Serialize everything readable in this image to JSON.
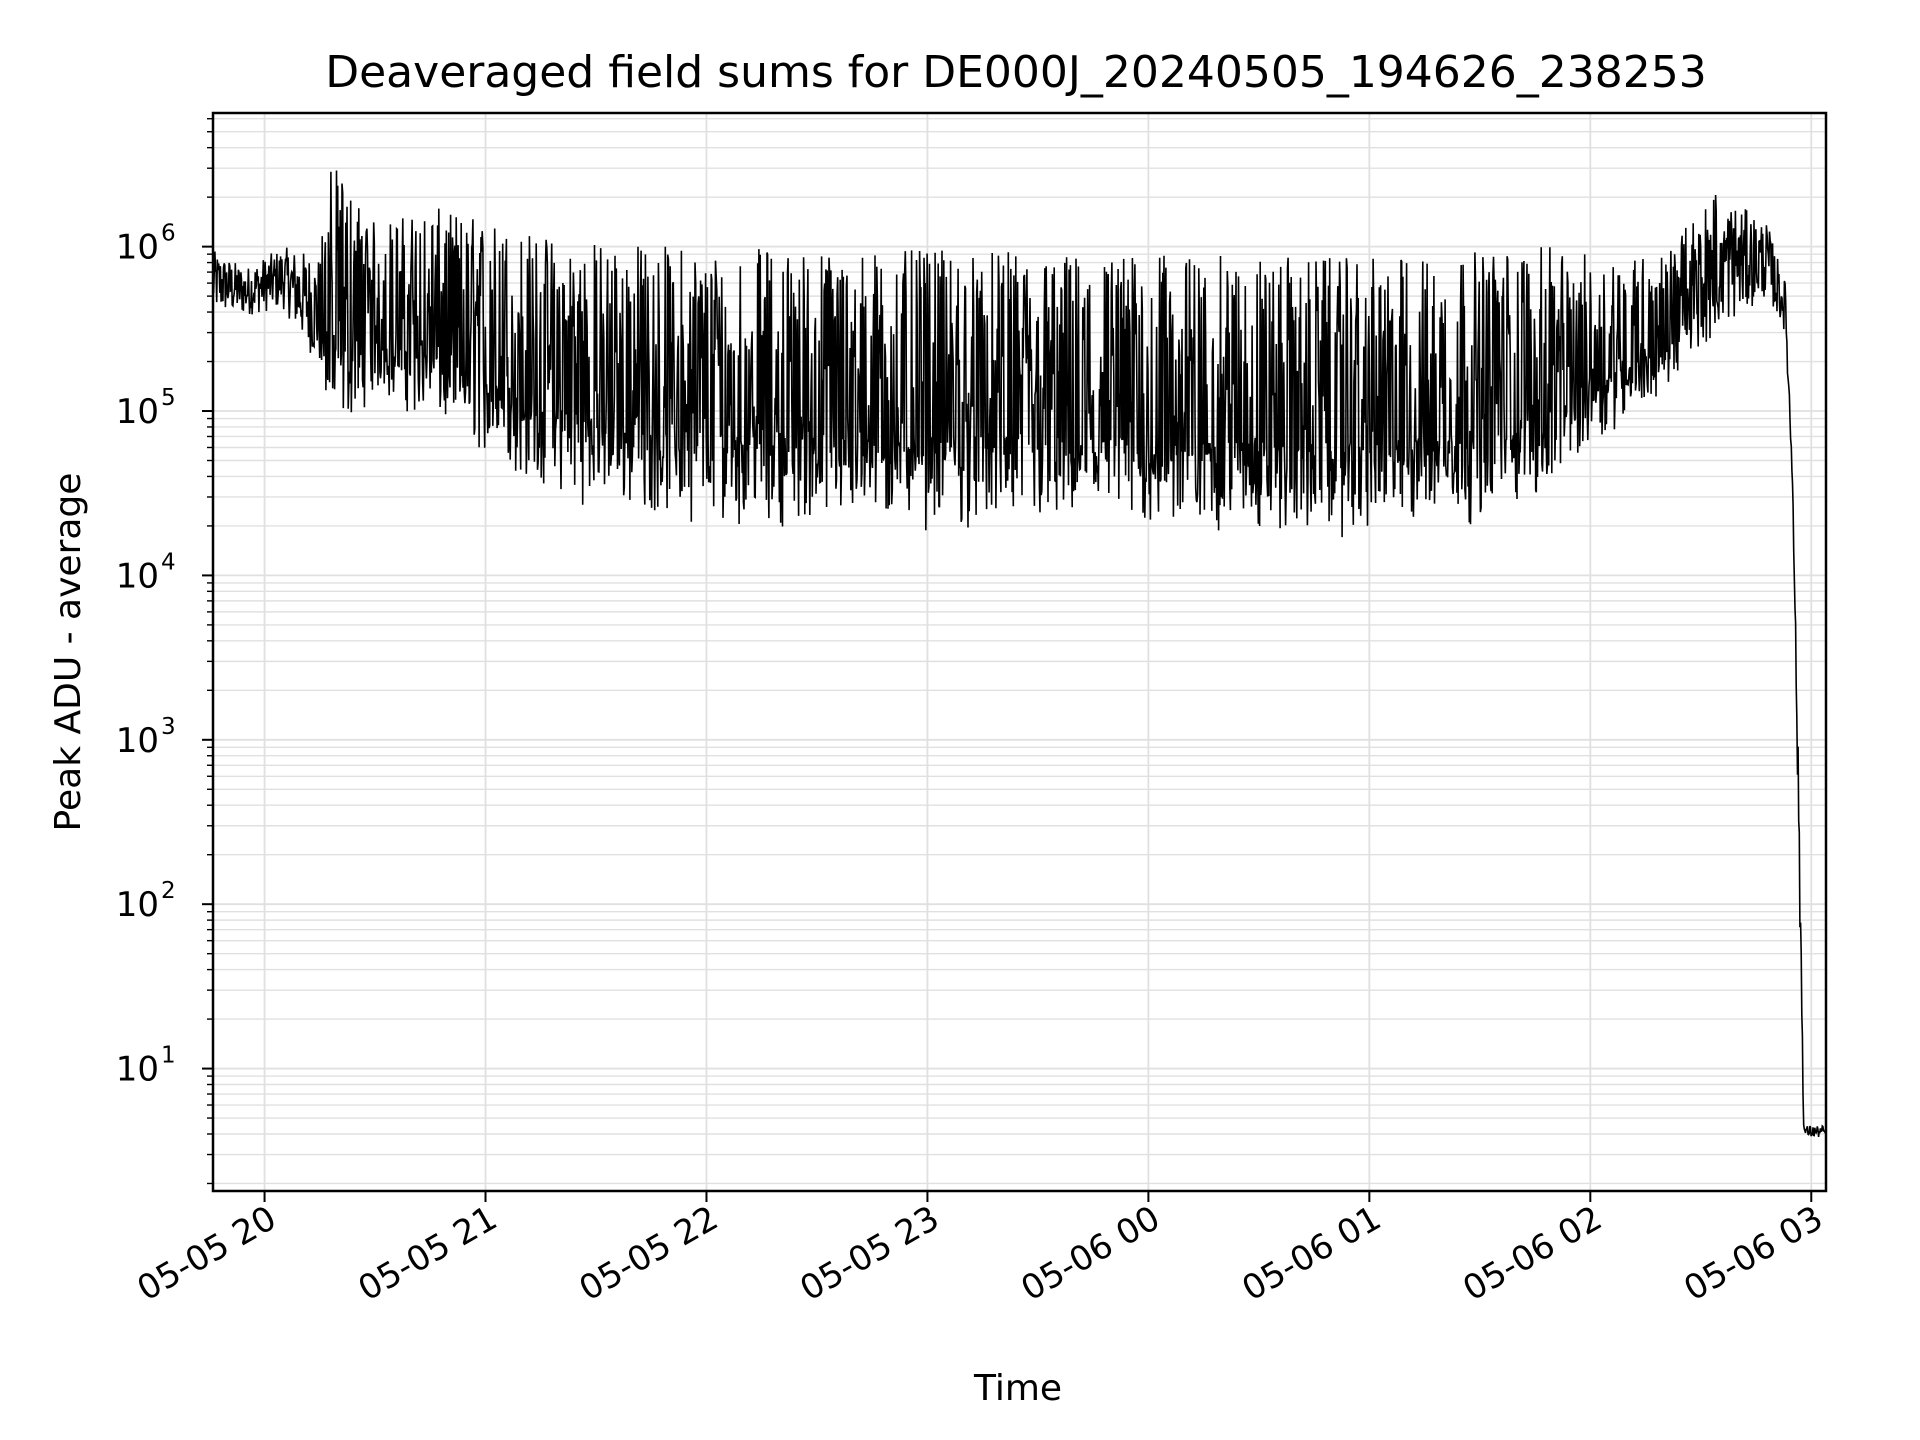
{
  "chart_data": {
    "type": "line",
    "title": "Deaveraged field sums for DE000J_20240505_194626_238253",
    "xlabel": "Time",
    "ylabel": "Peak ADU - average",
    "y_scale": "log",
    "ylim": [
      1.8,
      6500000
    ],
    "xlim": [
      "2024-05-05 19:46",
      "2024-05-06 03:04"
    ],
    "grid": true,
    "line_color": "#000000",
    "grid_color": "#e0e0e0",
    "x_ticks": [
      {
        "value": "2024-05-05 20:00",
        "label": "05-05 20"
      },
      {
        "value": "2024-05-05 21:00",
        "label": "05-05 21"
      },
      {
        "value": "2024-05-05 22:00",
        "label": "05-05 22"
      },
      {
        "value": "2024-05-05 23:00",
        "label": "05-05 23"
      },
      {
        "value": "2024-05-06 00:00",
        "label": "05-06 00"
      },
      {
        "value": "2024-05-06 01:00",
        "label": "05-06 01"
      },
      {
        "value": "2024-05-06 02:00",
        "label": "05-06 02"
      },
      {
        "value": "2024-05-06 03:00",
        "label": "05-06 03"
      }
    ],
    "y_ticks": [
      {
        "value": 10,
        "base": "10",
        "exp": "1"
      },
      {
        "value": 100,
        "base": "10",
        "exp": "2"
      },
      {
        "value": 1000,
        "base": "10",
        "exp": "3"
      },
      {
        "value": 10000,
        "base": "10",
        "exp": "4"
      },
      {
        "value": 100000,
        "base": "10",
        "exp": "5"
      },
      {
        "value": 1000000,
        "base": "10",
        "exp": "6"
      }
    ],
    "series": [
      {
        "description_points": [
          {
            "t": "2024-05-05 19:46",
            "lo": 400000,
            "hi": 950000
          },
          {
            "t": "2024-05-05 19:55",
            "lo": 380000,
            "hi": 750000
          },
          {
            "t": "2024-05-05 20:05",
            "lo": 420000,
            "hi": 1000000
          },
          {
            "t": "2024-05-05 20:15",
            "lo": 180000,
            "hi": 900000
          },
          {
            "t": "2024-05-05 20:18",
            "lo": 60000,
            "hi": 3300000
          },
          {
            "t": "2024-05-05 20:30",
            "lo": 120000,
            "hi": 1400000
          },
          {
            "t": "2024-05-05 20:45",
            "lo": 80000,
            "hi": 1750000
          },
          {
            "t": "2024-05-05 21:00",
            "lo": 50000,
            "hi": 1500000
          },
          {
            "t": "2024-05-05 21:15",
            "lo": 30000,
            "hi": 1200000
          },
          {
            "t": "2024-05-05 21:30",
            "lo": 25000,
            "hi": 1100000
          },
          {
            "t": "2024-05-05 22:00",
            "lo": 20000,
            "hi": 1000000
          },
          {
            "t": "2024-05-05 23:00",
            "lo": 18000,
            "hi": 950000
          },
          {
            "t": "2024-05-06 00:00",
            "lo": 17000,
            "hi": 900000
          },
          {
            "t": "2024-05-06 01:00",
            "lo": 16000,
            "hi": 850000
          },
          {
            "t": "2024-05-06 01:30",
            "lo": 20000,
            "hi": 950000
          },
          {
            "t": "2024-05-06 01:50",
            "lo": 30000,
            "hi": 1000000
          },
          {
            "t": "2024-05-06 02:00",
            "lo": 60000,
            "hi": 900000
          },
          {
            "t": "2024-05-06 02:20",
            "lo": 120000,
            "hi": 900000
          },
          {
            "t": "2024-05-06 02:34",
            "lo": 300000,
            "hi": 2200000
          },
          {
            "t": "2024-05-06 02:48",
            "lo": 500000,
            "hi": 1400000
          },
          {
            "t": "2024-05-06 02:53",
            "lo": 300000,
            "hi": 600000
          },
          {
            "t": "2024-05-06 02:55",
            "lo": 30000,
            "hi": 40000
          },
          {
            "t": "2024-05-06 02:57",
            "lo": 50,
            "hi": 200
          },
          {
            "t": "2024-05-06 02:58",
            "lo": 3.8,
            "hi": 4.5
          },
          {
            "t": "2024-05-06 03:04",
            "lo": 3.8,
            "hi": 4.5
          }
        ]
      }
    ]
  }
}
